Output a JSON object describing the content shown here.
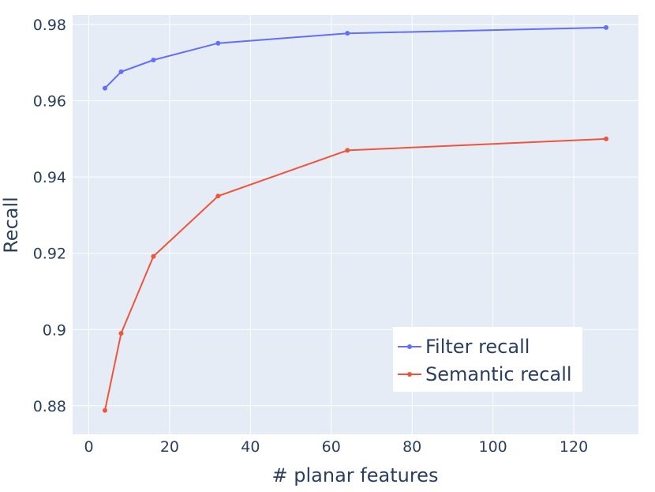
{
  "chart_data": {
    "type": "line",
    "title": "",
    "xlabel": "# planar features",
    "ylabel": "Recall",
    "xlim": [
      -4,
      136
    ],
    "ylim": [
      0.8725,
      0.9825
    ],
    "xticks": [
      0,
      20,
      40,
      60,
      80,
      100,
      120
    ],
    "xtick_labels": [
      "0",
      "20",
      "40",
      "60",
      "80",
      "100",
      "120"
    ],
    "yticks": [
      0.88,
      0.9,
      0.92,
      0.94,
      0.96,
      0.98
    ],
    "ytick_labels": [
      "0.88",
      "0.9",
      "0.92",
      "0.94",
      "0.96",
      "0.98"
    ],
    "grid": true,
    "legend_position": "bottom-right",
    "x": [
      4,
      8,
      16,
      32,
      64,
      128
    ],
    "series": [
      {
        "name": "Filter recall",
        "color": "#636efa",
        "values": [
          0.9633,
          0.9676,
          0.9707,
          0.9751,
          0.9777,
          0.9792
        ]
      },
      {
        "name": "Semantic recall",
        "color": "#ef553b",
        "values": [
          0.8788,
          0.899,
          0.9192,
          0.935,
          0.947,
          0.95
        ]
      }
    ],
    "plot_background": "#e5ecf6",
    "grid_color": "#ffffff"
  }
}
